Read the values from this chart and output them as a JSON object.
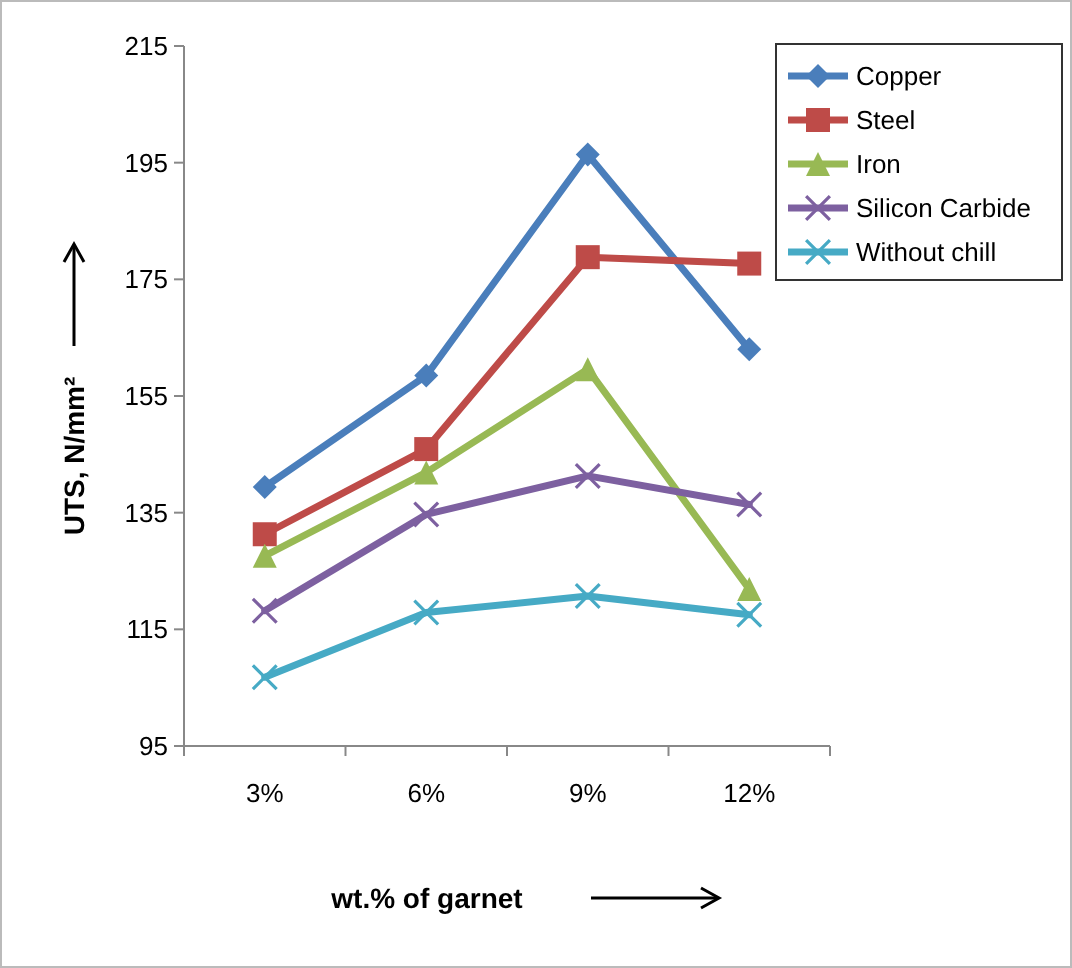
{
  "chart_data": {
    "type": "line",
    "xlabel": "wt.% of garnet",
    "ylabel": "UTS, N/mm²",
    "categories": [
      "3%",
      "6%",
      "9%",
      "12%"
    ],
    "ylim": [
      95,
      215
    ],
    "yticks": [
      95,
      115,
      135,
      155,
      175,
      195,
      215
    ],
    "grid": false,
    "legend": "top right",
    "series": [
      {
        "name": "Copper",
        "color": "#4a7ebb",
        "marker": "diamond",
        "values": [
          139.4,
          158.5,
          196.4,
          163
        ]
      },
      {
        "name": "Steel",
        "color": "#be4b48",
        "marker": "square",
        "values": [
          131.3,
          145.9,
          178.8,
          177.7
        ]
      },
      {
        "name": "Iron",
        "color": "#98b954",
        "marker": "triangle",
        "values": [
          127.6,
          141.9,
          159.6,
          121.9
        ]
      },
      {
        "name": "Silicon Carbide",
        "color": "#7d60a0",
        "marker": "cross",
        "values": [
          118.2,
          134.7,
          141.3,
          136.4
        ]
      },
      {
        "name": "Without chill",
        "color": "#46aac5",
        "marker": "cross",
        "values": [
          106.8,
          117.9,
          120.7,
          117.5
        ]
      }
    ]
  }
}
